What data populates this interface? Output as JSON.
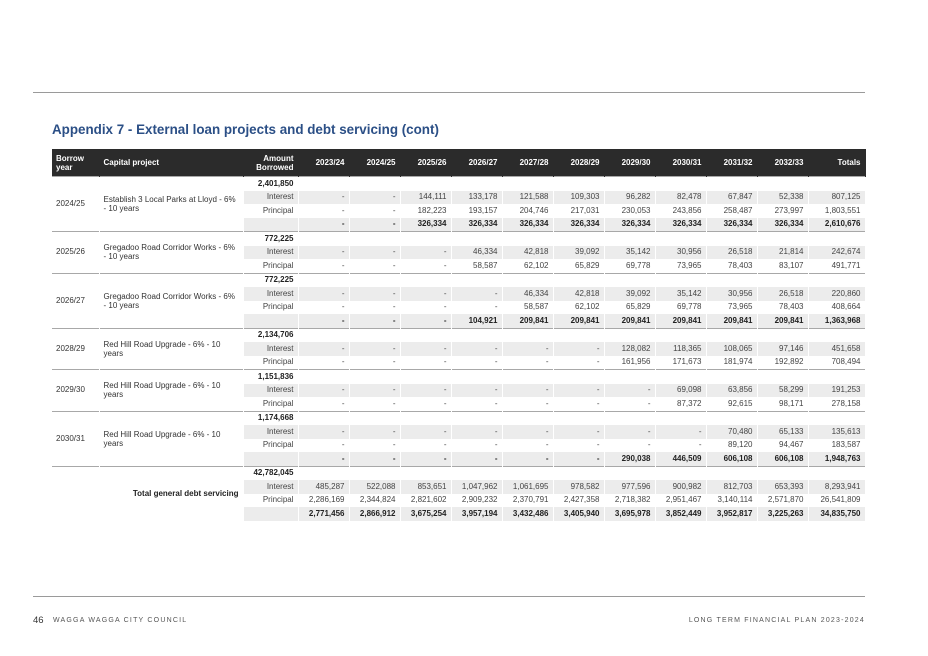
{
  "title": "Appendix 7 - External loan projects and debt servicing (cont)",
  "headers": {
    "borrow_year": "Borrow year",
    "capital_project": "Capital project",
    "amount_borrowed": "Amount Borrowed",
    "years": [
      "2023/24",
      "2024/25",
      "2025/26",
      "2026/27",
      "2027/28",
      "2028/29",
      "2029/30",
      "2030/31",
      "2031/32",
      "2032/33"
    ],
    "totals": "Totals"
  },
  "labels": {
    "interest": "Interest",
    "principal": "Principal"
  },
  "groups": [
    {
      "year": "2024/25",
      "project": "Establish 3 Local Parks at Lloyd - 6% - 10 years",
      "amount": "2,401,850",
      "interest": [
        "-",
        "-",
        "144,111",
        "133,178",
        "121,588",
        "109,303",
        "96,282",
        "82,478",
        "67,847",
        "52,338",
        "807,125"
      ],
      "principal": [
        "-",
        "-",
        "182,223",
        "193,157",
        "204,746",
        "217,031",
        "230,053",
        "243,856",
        "258,487",
        "273,997",
        "1,803,551"
      ],
      "total": [
        "-",
        "-",
        "326,334",
        "326,334",
        "326,334",
        "326,334",
        "326,334",
        "326,334",
        "326,334",
        "326,334",
        "2,610,676"
      ]
    },
    {
      "year": "2025/26",
      "project": "Gregadoo Road Corridor Works - 6% - 10 years",
      "amount": "772,225",
      "interest": [
        "-",
        "-",
        "-",
        "46,334",
        "42,818",
        "39,092",
        "35,142",
        "30,956",
        "26,518",
        "21,814",
        "242,674"
      ],
      "principal": [
        "-",
        "-",
        "-",
        "58,587",
        "62,102",
        "65,829",
        "69,778",
        "73,965",
        "78,403",
        "83,107",
        "491,771"
      ]
    },
    {
      "year": "2026/27",
      "project": "Gregadoo Road Corridor Works - 6% - 10 years",
      "amount": "772,225",
      "interest": [
        "-",
        "-",
        "-",
        "-",
        "46,334",
        "42,818",
        "39,092",
        "35,142",
        "30,956",
        "26,518",
        "220,860"
      ],
      "principal": [
        "-",
        "-",
        "-",
        "-",
        "58,587",
        "62,102",
        "65,829",
        "69,778",
        "73,965",
        "78,403",
        "408,664"
      ],
      "total": [
        "-",
        "-",
        "-",
        "104,921",
        "209,841",
        "209,841",
        "209,841",
        "209,841",
        "209,841",
        "209,841",
        "1,363,968"
      ]
    },
    {
      "year": "2028/29",
      "project": "Red Hill Road Upgrade - 6% - 10 years",
      "amount": "2,134,706",
      "interest": [
        "-",
        "-",
        "-",
        "-",
        "-",
        "-",
        "128,082",
        "118,365",
        "108,065",
        "97,146",
        "451,658"
      ],
      "principal": [
        "-",
        "-",
        "-",
        "-",
        "-",
        "-",
        "161,956",
        "171,673",
        "181,974",
        "192,892",
        "708,494"
      ]
    },
    {
      "year": "2029/30",
      "project": "Red Hill Road Upgrade - 6% - 10 years",
      "amount": "1,151,836",
      "interest": [
        "-",
        "-",
        "-",
        "-",
        "-",
        "-",
        "-",
        "69,098",
        "63,856",
        "58,299",
        "191,253"
      ],
      "principal": [
        "-",
        "-",
        "-",
        "-",
        "-",
        "-",
        "-",
        "87,372",
        "92,615",
        "98,171",
        "278,158"
      ]
    },
    {
      "year": "2030/31",
      "project": "Red Hill Road Upgrade - 6% - 10 years",
      "amount": "1,174,668",
      "interest": [
        "-",
        "-",
        "-",
        "-",
        "-",
        "-",
        "-",
        "-",
        "70,480",
        "65,133",
        "135,613"
      ],
      "principal": [
        "-",
        "-",
        "-",
        "-",
        "-",
        "-",
        "-",
        "-",
        "89,120",
        "94,467",
        "183,587"
      ],
      "total": [
        "-",
        "-",
        "-",
        "-",
        "-",
        "-",
        "290,038",
        "446,509",
        "606,108",
        "606,108",
        "1,948,763"
      ]
    }
  ],
  "grand": {
    "label": "Total general debt servicing",
    "amount": "42,782,045",
    "interest": [
      "485,287",
      "522,088",
      "853,651",
      "1,047,962",
      "1,061,695",
      "978,582",
      "977,596",
      "900,982",
      "812,703",
      "653,393",
      "8,293,941"
    ],
    "principal": [
      "2,286,169",
      "2,344,824",
      "2,821,602",
      "2,909,232",
      "2,370,791",
      "2,427,358",
      "2,718,382",
      "2,951,467",
      "3,140,114",
      "2,571,870",
      "26,541,809"
    ],
    "total": [
      "2,771,456",
      "2,866,912",
      "3,675,254",
      "3,957,194",
      "3,432,486",
      "3,405,940",
      "3,695,978",
      "3,852,449",
      "3,952,817",
      "3,225,263",
      "34,835,750"
    ]
  },
  "footer": {
    "page": "46",
    "left": "WAGGA WAGGA CITY COUNCIL",
    "right": "LONG TERM FINANCIAL PLAN 2023-2024"
  }
}
